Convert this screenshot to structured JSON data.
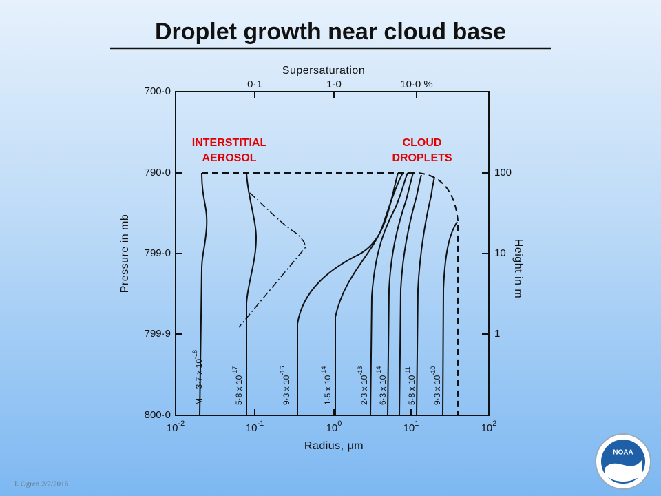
{
  "slide": {
    "title": "Droplet growth near cloud base",
    "footer": "J. Ogren  2/2/2016",
    "logo": "NOAA"
  },
  "figure": {
    "top_axis_label": "Supersaturation",
    "top_ticks": [
      "0·1",
      "1·0",
      "10·0 %"
    ],
    "left_axis_label": "Pressure in mb",
    "left_ticks": [
      "700·0",
      "790·0",
      "799·0",
      "799·9",
      "800·0"
    ],
    "right_axis_label": "Height in m",
    "right_ticks": [
      "100",
      "10",
      "1"
    ],
    "bottom_axis_label": "Radius, μm",
    "bottom_ticks": [
      {
        "base": "10",
        "exp": "-2"
      },
      {
        "base": "10",
        "exp": "-1"
      },
      {
        "base": "10",
        "exp": "0"
      },
      {
        "base": "10",
        "exp": "1"
      },
      {
        "base": "10",
        "exp": "2"
      }
    ],
    "annotations": [
      [
        "INTERSTITIAL",
        "AEROSOL"
      ],
      [
        "CLOUD",
        "DROPLETS"
      ]
    ],
    "curve_labels": [
      {
        "text": "M = 3·7 x 10",
        "exp": "-18"
      },
      {
        "text": "5·8 x 10",
        "exp": "-17"
      },
      {
        "text": "9·3 x 10",
        "exp": "-16"
      },
      {
        "text": "1·5 x 10",
        "exp": "-14"
      },
      {
        "text": "2·3 x 10",
        "exp": "-13"
      },
      {
        "text": "6·3 x 10",
        "exp": "-14"
      },
      {
        "text": "5·8 x 10",
        "exp": "-11"
      },
      {
        "text": "9·3 x 10",
        "exp": "-10"
      }
    ]
  }
}
